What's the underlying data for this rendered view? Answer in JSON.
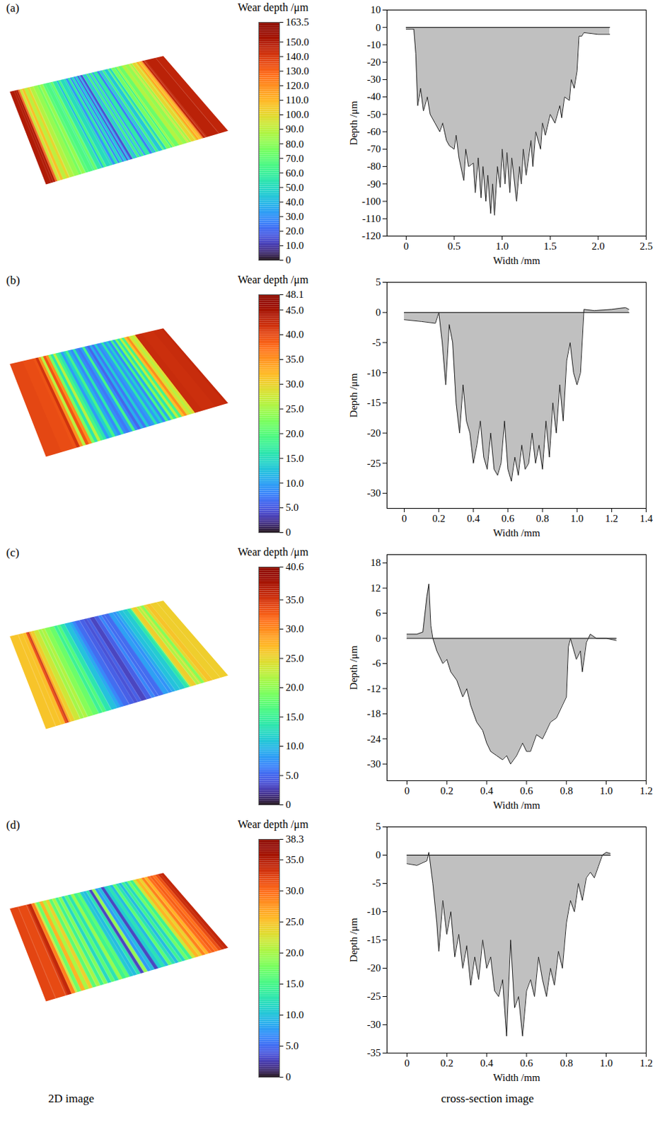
{
  "captions": [
    "2D image",
    "cross-section image"
  ],
  "chart_data": [
    {
      "type": "area",
      "title": "(a)",
      "x_label": "Width /mm",
      "y_label": "Depth /μm",
      "color": "#c0c0c0",
      "x": [
        0,
        0.05,
        0.08,
        0.1,
        0.12,
        0.15,
        0.18,
        0.22,
        0.25,
        0.3,
        0.35,
        0.38,
        0.42,
        0.45,
        0.5,
        0.52,
        0.55,
        0.6,
        0.62,
        0.65,
        0.7,
        0.72,
        0.75,
        0.78,
        0.8,
        0.83,
        0.85,
        0.88,
        0.9,
        0.92,
        0.95,
        0.98,
        1.0,
        1.03,
        1.05,
        1.08,
        1.1,
        1.15,
        1.18,
        1.2,
        1.22,
        1.25,
        1.3,
        1.32,
        1.35,
        1.4,
        1.42,
        1.45,
        1.5,
        1.55,
        1.6,
        1.62,
        1.65,
        1.7,
        1.72,
        1.75,
        1.78,
        1.8,
        1.83,
        1.85,
        2.0,
        2.12
      ],
      "values": [
        -1,
        -1,
        -1,
        -15,
        -45,
        -35,
        -48,
        -40,
        -50,
        -55,
        -60,
        -55,
        -65,
        -68,
        -70,
        -62,
        -75,
        -88,
        -70,
        -80,
        -78,
        -95,
        -75,
        -98,
        -80,
        -100,
        -85,
        -107,
        -90,
        -108,
        -80,
        -92,
        -70,
        -90,
        -72,
        -95,
        -75,
        -100,
        -80,
        -90,
        -70,
        -85,
        -65,
        -80,
        -60,
        -70,
        -55,
        -62,
        -50,
        -55,
        -45,
        -52,
        -40,
        -42,
        -30,
        -35,
        -25,
        -5,
        -5,
        -3,
        -4,
        -4
      ],
      "xlim": [
        -0.2,
        2.5
      ],
      "xticks": [
        0,
        0.5,
        {
          "value": 1,
          "label": "1.0"
        },
        1.5,
        {
          "value": 2,
          "label": "2.0"
        },
        2.5
      ],
      "ylim": [
        -120,
        10
      ],
      "yticks": [
        10,
        0,
        -10,
        -20,
        -30,
        -40,
        -50,
        -60,
        -70,
        -80,
        -90,
        -100,
        -110,
        -120
      ],
      "colorbar": {
        "label": "Wear depth /μm",
        "range": [
          0,
          163.5
        ],
        "ticks": [
          0,
          {
            "value": 10,
            "label": "10.0"
          },
          {
            "value": 20,
            "label": "20.0"
          },
          {
            "value": 30,
            "label": "30.0"
          },
          {
            "value": 40,
            "label": "40.0"
          },
          {
            "value": 50,
            "label": "50.0"
          },
          {
            "value": 60,
            "label": "60.0"
          },
          {
            "value": 70,
            "label": "70.0"
          },
          {
            "value": 80,
            "label": "80.0"
          },
          {
            "value": 90,
            "label": "90.0"
          },
          {
            "value": 100,
            "label": "100.0"
          },
          {
            "value": 110,
            "label": "110.0"
          },
          {
            "value": 120,
            "label": "120.0"
          },
          {
            "value": 130,
            "label": "130.0"
          },
          {
            "value": 140,
            "label": "140.0"
          },
          {
            "value": 150,
            "label": "150.0"
          },
          163.5
        ]
      }
    },
    {
      "type": "area",
      "title": "(b)",
      "x_label": "Width /mm",
      "y_label": "Depth /μm",
      "color": "#c0c0c0",
      "x": [
        0,
        0.1,
        0.18,
        0.2,
        0.22,
        0.24,
        0.26,
        0.28,
        0.3,
        0.32,
        0.34,
        0.36,
        0.38,
        0.4,
        0.42,
        0.44,
        0.46,
        0.48,
        0.5,
        0.52,
        0.54,
        0.56,
        0.58,
        0.6,
        0.62,
        0.64,
        0.66,
        0.68,
        0.7,
        0.72,
        0.74,
        0.76,
        0.78,
        0.8,
        0.82,
        0.84,
        0.86,
        0.88,
        0.9,
        0.92,
        0.94,
        0.96,
        0.98,
        1.0,
        1.02,
        1.04,
        1.1,
        1.2,
        1.28,
        1.3
      ],
      "values": [
        -1.2,
        -1.5,
        -1.8,
        0,
        -5,
        -12,
        -2,
        -5,
        -15,
        -20,
        -12,
        -18,
        -20,
        -25,
        -22,
        -18,
        -24,
        -26,
        -20,
        -26,
        -27,
        -25,
        -18,
        -26,
        -28,
        -24,
        -27,
        -22,
        -26,
        -25,
        -20,
        -25,
        -22,
        -26,
        -18,
        -24,
        -15,
        -20,
        -12,
        -18,
        -8,
        -5,
        -10,
        -12,
        -10,
        0.5,
        0.3,
        0.5,
        0.8,
        0.5
      ],
      "xlim": [
        -0.1,
        1.4
      ],
      "xticks": [
        0,
        0.2,
        0.4,
        0.6,
        0.8,
        {
          "value": 1,
          "label": "1.0"
        },
        1.2,
        1.4
      ],
      "ylim": [
        -32.5,
        5
      ],
      "yticks": [
        5,
        0,
        -5,
        -10,
        -15,
        -20,
        -25,
        -30
      ],
      "colorbar": {
        "label": "Wear depth /μm",
        "range": [
          0,
          48.1
        ],
        "ticks": [
          0,
          {
            "value": 5,
            "label": "5.0"
          },
          {
            "value": 10,
            "label": "10.0"
          },
          {
            "value": 15,
            "label": "15.0"
          },
          {
            "value": 20,
            "label": "20.0"
          },
          {
            "value": 25,
            "label": "25.0"
          },
          {
            "value": 30,
            "label": "30.0"
          },
          {
            "value": 35,
            "label": "35.0"
          },
          {
            "value": 40,
            "label": "40.0"
          },
          {
            "value": 45,
            "label": "45.0"
          },
          48.1
        ]
      }
    },
    {
      "type": "area",
      "title": "(c)",
      "x_label": "Width /mm",
      "y_label": "Depth /μm",
      "color": "#c0c0c0",
      "x": [
        0,
        0.05,
        0.08,
        0.1,
        0.11,
        0.12,
        0.13,
        0.15,
        0.18,
        0.2,
        0.22,
        0.25,
        0.28,
        0.3,
        0.32,
        0.35,
        0.38,
        0.4,
        0.42,
        0.45,
        0.48,
        0.5,
        0.52,
        0.55,
        0.58,
        0.6,
        0.62,
        0.65,
        0.68,
        0.7,
        0.72,
        0.75,
        0.78,
        0.8,
        0.81,
        0.82,
        0.85,
        0.87,
        0.88,
        0.9,
        0.92,
        0.95,
        1.0,
        1.05
      ],
      "values": [
        1,
        1,
        1.5,
        10,
        13,
        3,
        0,
        -3,
        -6,
        -5,
        -8,
        -10,
        -14,
        -12,
        -16,
        -20,
        -22,
        -25,
        -27,
        -28,
        -29,
        -28,
        -30,
        -28,
        -25,
        -27,
        -27,
        -23,
        -24,
        -22,
        -20,
        -19,
        -16,
        -14,
        -2,
        0,
        -5,
        -3,
        -8,
        -1,
        1,
        0,
        0,
        -0.5
      ],
      "xlim": [
        -0.1,
        1.2
      ],
      "xticks": [
        0,
        0.2,
        0.4,
        0.6,
        0.8,
        {
          "value": 1,
          "label": "1.0"
        },
        1.2
      ],
      "ylim": [
        -34,
        20
      ],
      "yticks": [
        18,
        12,
        6,
        0,
        -6,
        -12,
        -18,
        -24,
        -30
      ],
      "colorbar": {
        "label": "Wear depth /μm",
        "range": [
          0,
          40.6
        ],
        "ticks": [
          0,
          {
            "value": 5,
            "label": "5.0"
          },
          {
            "value": 10,
            "label": "10.0"
          },
          {
            "value": 15,
            "label": "15.0"
          },
          {
            "value": 20,
            "label": "20.0"
          },
          {
            "value": 25,
            "label": "25.0"
          },
          {
            "value": 30,
            "label": "30.0"
          },
          {
            "value": 35,
            "label": "35.0"
          },
          40.6
        ]
      }
    },
    {
      "type": "area",
      "title": "(d)",
      "x_label": "Width /mm",
      "y_label": "Depth /μm",
      "color": "#c0c0c0",
      "x": [
        0,
        0.05,
        0.1,
        0.11,
        0.13,
        0.15,
        0.16,
        0.18,
        0.2,
        0.22,
        0.24,
        0.26,
        0.28,
        0.3,
        0.32,
        0.34,
        0.36,
        0.38,
        0.4,
        0.42,
        0.44,
        0.46,
        0.48,
        0.5,
        0.52,
        0.54,
        0.56,
        0.58,
        0.6,
        0.62,
        0.64,
        0.66,
        0.68,
        0.7,
        0.72,
        0.74,
        0.76,
        0.78,
        0.8,
        0.82,
        0.84,
        0.86,
        0.88,
        0.9,
        0.92,
        0.94,
        0.96,
        0.98,
        1.0,
        1.02
      ],
      "values": [
        -1.5,
        -1.8,
        -1,
        0.5,
        -5,
        -12,
        -17,
        -8,
        -14,
        -10,
        -18,
        -14,
        -20,
        -16,
        -23,
        -18,
        -22,
        -15,
        -20,
        -18,
        -24,
        -25,
        -22,
        -32,
        -15,
        -27,
        -25,
        -32,
        -24,
        -22,
        -25,
        -18,
        -22,
        -25,
        -20,
        -23,
        -17,
        -20,
        -12,
        -8,
        -10,
        -5,
        -8,
        -4,
        -3,
        -4,
        -2,
        0,
        0.5,
        0.3
      ],
      "xlim": [
        -0.1,
        1.2
      ],
      "xticks": [
        0,
        0.2,
        0.4,
        0.6,
        0.8,
        {
          "value": 1,
          "label": "1.0"
        },
        1.2
      ],
      "ylim": [
        -35,
        5
      ],
      "yticks": [
        5,
        0,
        -5,
        -10,
        -15,
        -20,
        -25,
        -30,
        -35
      ],
      "colorbar": {
        "label": "Wear depth /μm",
        "range": [
          0,
          38.3
        ],
        "ticks": [
          0,
          {
            "value": 5,
            "label": "5.0"
          },
          {
            "value": 10,
            "label": "10.0"
          },
          {
            "value": 15,
            "label": "15.0"
          },
          {
            "value": 20,
            "label": "20.0"
          },
          {
            "value": 25,
            "label": "25.0"
          },
          {
            "value": 30,
            "label": "30.0"
          },
          {
            "value": 35,
            "label": "35.0"
          },
          38.3
        ]
      }
    }
  ]
}
